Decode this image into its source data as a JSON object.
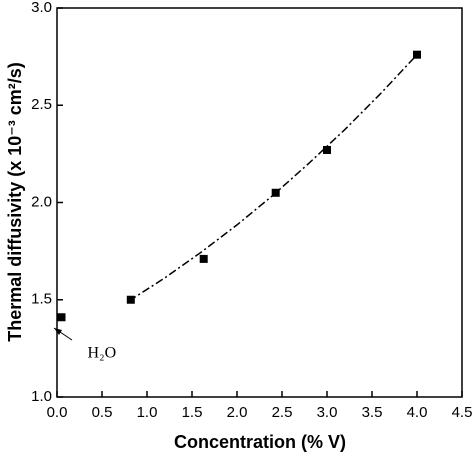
{
  "chart_data": {
    "type": "scatter",
    "x_label": "Concentration (% V)",
    "y_label": "Thermal diffusivity (x 10⁻³ cm²/s)",
    "x": [
      0.05,
      0.82,
      1.63,
      2.43,
      3.0,
      4.0
    ],
    "values": [
      1.41,
      1.5,
      1.71,
      2.05,
      2.27,
      2.76
    ],
    "color": "#000000",
    "fit": {
      "style": "dash-dot",
      "x": [
        0.8,
        1.2,
        1.6,
        2.0,
        2.4,
        2.8,
        3.2,
        3.6,
        4.0
      ],
      "values": [
        1.494,
        1.613,
        1.744,
        1.885,
        2.037,
        2.202,
        2.376,
        2.562,
        2.76
      ]
    },
    "annotation": "H₂O",
    "xlim": [
      0,
      4.5
    ],
    "xticks": [
      {
        "value": 0,
        "label": "0.0"
      },
      {
        "value": 0.5,
        "label": "0.5"
      },
      {
        "value": 1,
        "label": "1.0"
      },
      {
        "value": 1.5,
        "label": "1.5"
      },
      {
        "value": 2,
        "label": "2.0"
      },
      {
        "value": 2.5,
        "label": "2.5"
      },
      {
        "value": 3,
        "label": "3.0"
      },
      {
        "value": 3.5,
        "label": "3.5"
      },
      {
        "value": 4,
        "label": "4.0"
      },
      {
        "value": 4.5,
        "label": "4.5"
      }
    ],
    "ylim": [
      1.0,
      3.0
    ],
    "yticks": [
      {
        "value": 1,
        "label": "1.0"
      },
      {
        "value": 1.5,
        "label": "1.5"
      },
      {
        "value": 2,
        "label": "2.0"
      },
      {
        "value": 2.5,
        "label": "2.5"
      },
      {
        "value": 3,
        "label": "3.0"
      }
    ],
    "grid": false
  }
}
